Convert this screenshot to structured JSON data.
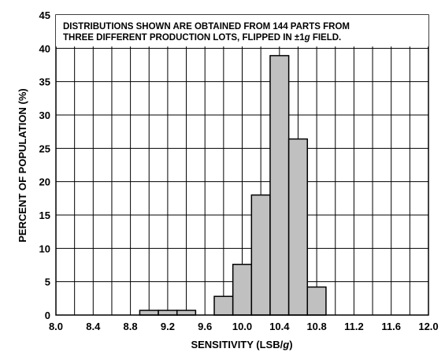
{
  "chart_data": {
    "type": "bar",
    "xlabel": "SENSITIVITY (LSB/g)",
    "ylabel": "PERCENT OF POPULATION (%)",
    "xlim": [
      8.0,
      12.0
    ],
    "ylim": [
      0,
      45
    ],
    "x_ticks": [
      "8.0",
      "8.4",
      "8.8",
      "9.2",
      "9.6",
      "10.0",
      "10.4",
      "10.8",
      "11.2",
      "11.6",
      "12.0"
    ],
    "y_ticks": [
      "0",
      "5",
      "10",
      "15",
      "20",
      "25",
      "30",
      "35",
      "40",
      "45"
    ],
    "bin_width": 0.2,
    "bins": [
      {
        "x_start": 8.9,
        "value": 0.7
      },
      {
        "x_start": 9.1,
        "value": 0.7
      },
      {
        "x_start": 9.3,
        "value": 0.7
      },
      {
        "x_start": 9.7,
        "value": 2.8
      },
      {
        "x_start": 9.9,
        "value": 7.6
      },
      {
        "x_start": 10.1,
        "value": 18.0
      },
      {
        "x_start": 10.3,
        "value": 38.9
      },
      {
        "x_start": 10.5,
        "value": 26.4
      },
      {
        "x_start": 10.7,
        "value": 4.2
      }
    ],
    "annotation": [
      "DISTRIBUTIONS SHOWN ARE OBTAINED FROM 144 PARTS FROM",
      "THREE DIFFERENT PRODUCTION LOTS, FLIPPED IN ±1g FIELD."
    ],
    "grid": true,
    "colors": {
      "bar_fill": "#c0c0c0",
      "bar_edge": "#000000",
      "grid": "#000000"
    }
  }
}
